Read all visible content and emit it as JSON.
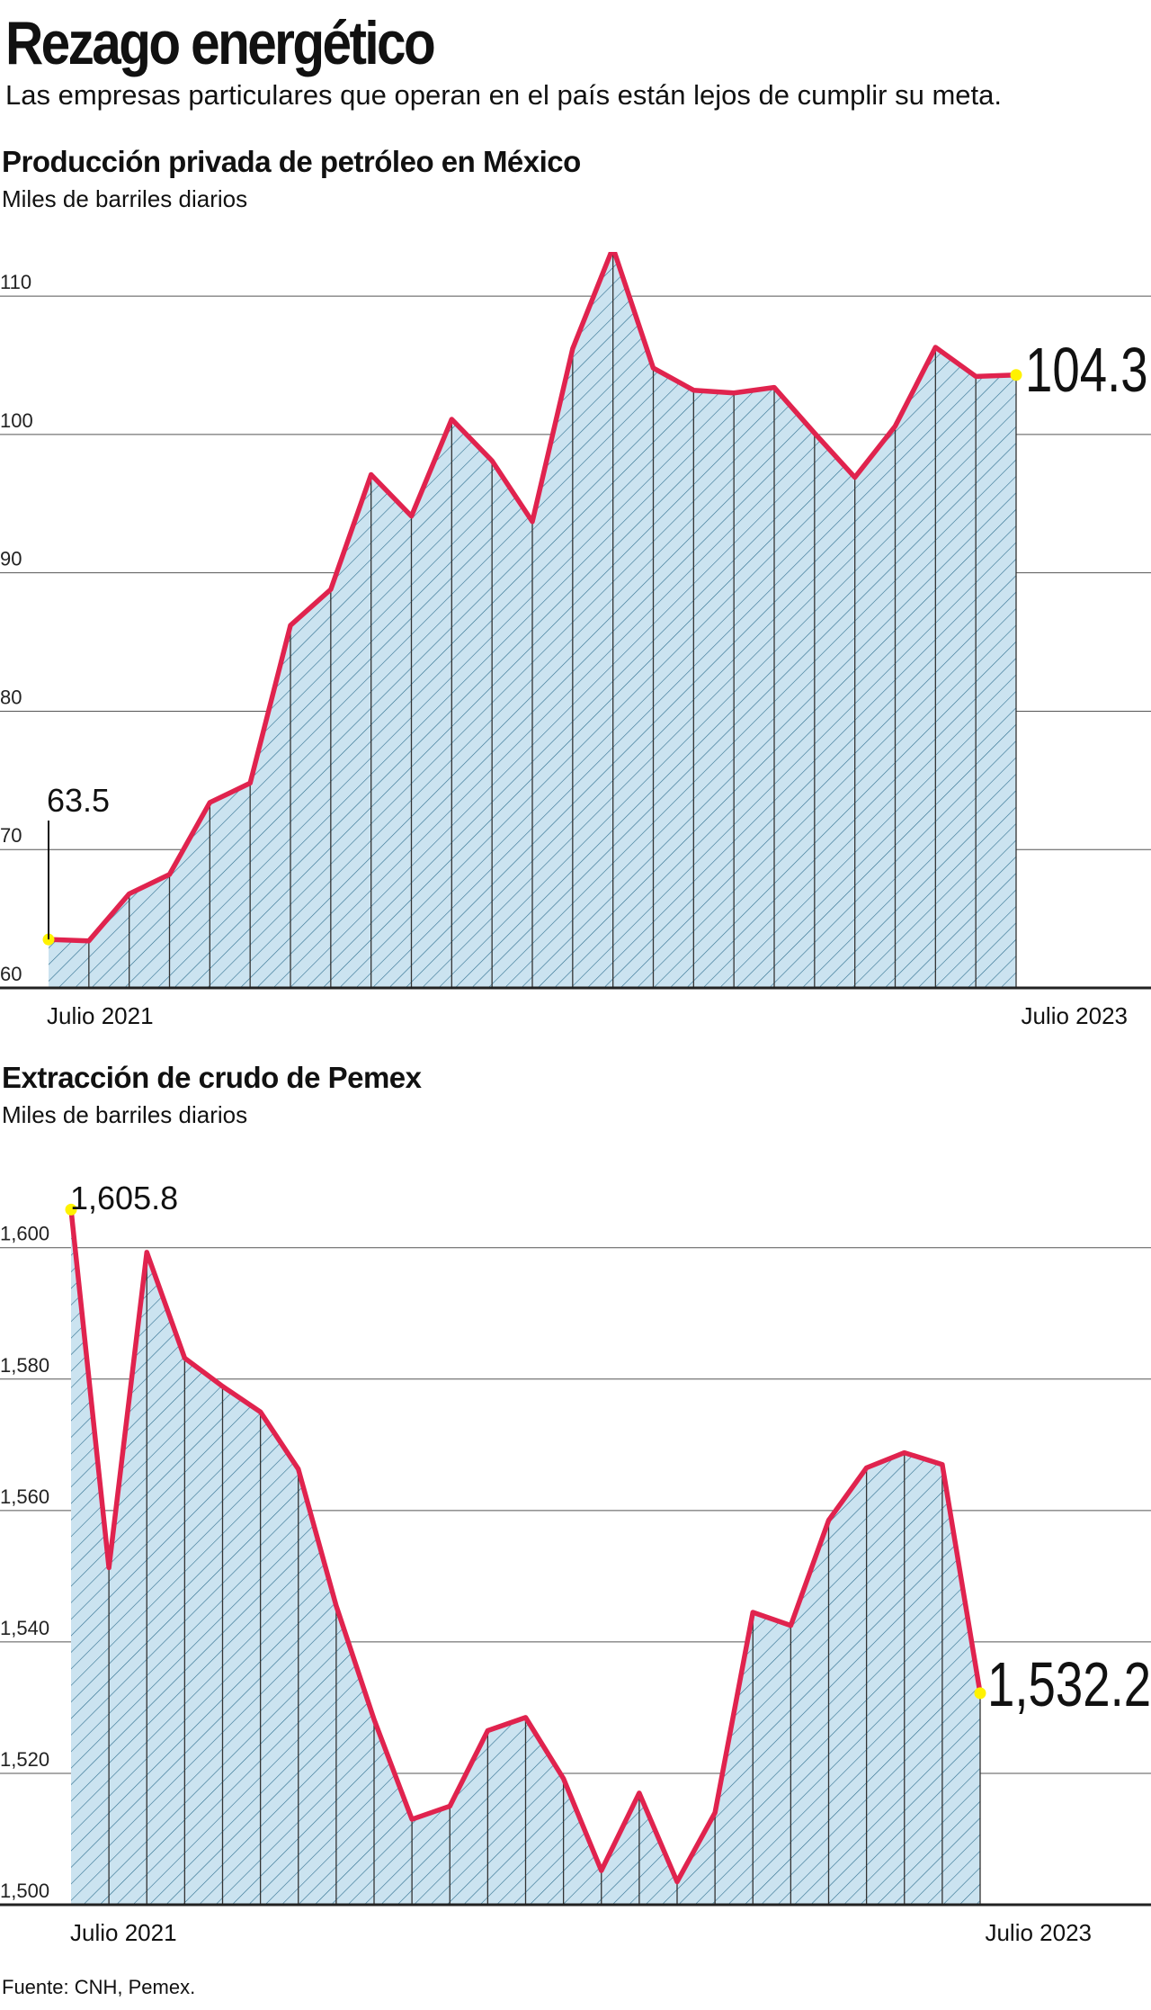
{
  "header": {
    "title": "Rezago energético",
    "subtitle": "Las empresas particulares que operan en el país están lejos de cumplir su meta."
  },
  "colors": {
    "line": "#e0234e",
    "fill": "#cbe3f0",
    "hatch": "#2f6f8f",
    "marker": "#fff200",
    "grid": "#555555"
  },
  "chart_data": [
    {
      "type": "area",
      "title": "Producción privada de petróleo en México",
      "unit": "Miles de barriles diarios",
      "x_label_start": "Julio 2021",
      "x_label_end": "Julio 2023",
      "ylim": [
        60,
        113
      ],
      "yticks": [
        60,
        70,
        80,
        90,
        100,
        110
      ],
      "ytick_labels": [
        "60",
        "70",
        "80",
        "90",
        "100",
        "110"
      ],
      "grid": true,
      "values": [
        63.5,
        63.4,
        66.8,
        68.2,
        73.4,
        74.8,
        86.2,
        88.8,
        97.1,
        94.1,
        101.1,
        98.1,
        93.7,
        106.2,
        113.5,
        104.8,
        103.2,
        103.0,
        103.4,
        100.1,
        96.9,
        100.6,
        106.3,
        104.2,
        104.3
      ],
      "annotations": {
        "first": "63.5",
        "last": "104.3"
      }
    },
    {
      "type": "area",
      "title": "Extracción de crudo de Pemex",
      "unit": "Miles de barriles diarios",
      "x_label_start": "Julio 2021",
      "x_label_end": "Julio 2023",
      "ylim": [
        1500,
        1609
      ],
      "yticks": [
        1500,
        1520,
        1540,
        1560,
        1580,
        1600
      ],
      "ytick_labels": [
        "1,500",
        "1,520",
        "1,540",
        "1,560",
        "1,580",
        "1,600"
      ],
      "grid": true,
      "values": [
        1605.8,
        1551.3,
        1599.3,
        1583.2,
        1578.9,
        1575.0,
        1566.3,
        1545.5,
        1528.2,
        1513.0,
        1515.0,
        1526.5,
        1528.5,
        1519.2,
        1505.2,
        1517.0,
        1503.5,
        1514.0,
        1544.5,
        1542.5,
        1558.5,
        1566.5,
        1568.8,
        1567.0,
        1532.2
      ],
      "annotations": {
        "first": "1,605.8",
        "last": "1,532.2"
      }
    }
  ],
  "source": "Fuente: CNH, Pemex."
}
